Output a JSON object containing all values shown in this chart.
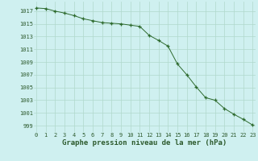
{
  "x": [
    0,
    1,
    2,
    3,
    4,
    5,
    6,
    7,
    8,
    9,
    10,
    11,
    12,
    13,
    14,
    15,
    16,
    17,
    18,
    19,
    20,
    21,
    22,
    23
  ],
  "y": [
    1017.5,
    1017.4,
    1017.0,
    1016.7,
    1016.3,
    1015.8,
    1015.5,
    1015.2,
    1015.1,
    1015.0,
    1014.8,
    1014.6,
    1013.2,
    1012.4,
    1011.5,
    1008.7,
    1007.0,
    1005.1,
    1003.4,
    1003.0,
    1001.7,
    1000.8,
    1000.0,
    999.1
  ],
  "ylim": [
    998,
    1018.5
  ],
  "yticks": [
    999,
    1001,
    1003,
    1005,
    1007,
    1009,
    1011,
    1013,
    1015,
    1017
  ],
  "xtick_labels": [
    "0",
    "1",
    "2",
    "3",
    "4",
    "5",
    "6",
    "7",
    "8",
    "9",
    "10",
    "11",
    "12",
    "13",
    "14",
    "15",
    "16",
    "17",
    "18",
    "19",
    "20",
    "21",
    "22",
    "23"
  ],
  "xlabel": "Graphe pression niveau de la mer (hPa)",
  "line_color": "#2d6a2d",
  "marker": "+",
  "bg_color": "#cff0f0",
  "grid_color": "#b0d8cc",
  "text_color": "#2d5a2d",
  "xlabel_fontsize": 6.5,
  "tick_fontsize": 5.0
}
